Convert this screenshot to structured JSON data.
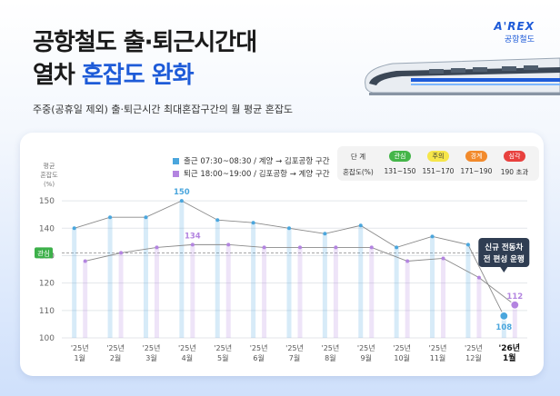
{
  "title_line1": "공항철도 출·퇴근시간대",
  "title_line2_plain": "열차 ",
  "title_line2_highlight": "혼잡도 완화",
  "subtitle": "주중(공휴일 제외) 출·퇴근시간 최대혼잡구간의 월 평균 혼잡도",
  "logo": {
    "en": "A'REX",
    "ko": "공항철도"
  },
  "legend": {
    "morning": "출근 07:30~08:30 / 계양 → 김포공항 구간",
    "evening": "퇴근 18:00~19:00 / 김포공항 → 계양 구간"
  },
  "ktable": {
    "level_header": "단 계",
    "range_header": "혼잡도(%)",
    "levels": [
      {
        "label": "관심",
        "range": "131~150"
      },
      {
        "label": "주의",
        "range": "151~170"
      },
      {
        "label": "경계",
        "range": "171~190"
      },
      {
        "label": "심각",
        "range": "190 초과"
      }
    ]
  },
  "annotation": {
    "line1": "신규 전동차",
    "line2": "전 편성 운행"
  },
  "ref_label": "관심",
  "colors": {
    "morning": "#4aa6dd",
    "evening": "#b384e0",
    "accent": "#1e5bd8",
    "ref": "#3db04a"
  },
  "chart_data": {
    "type": "bar",
    "ylabel": "평균 혼잡도 (%)",
    "ylim": [
      100,
      155
    ],
    "yticks": [
      100,
      110,
      120,
      130,
      140,
      150
    ],
    "categories": [
      [
        "'25년",
        "1월"
      ],
      [
        "'25년",
        "2월"
      ],
      [
        "'25년",
        "3월"
      ],
      [
        "'25년",
        "4월"
      ],
      [
        "'25년",
        "5월"
      ],
      [
        "'25년",
        "6월"
      ],
      [
        "'25년",
        "7월"
      ],
      [
        "'25년",
        "8월"
      ],
      [
        "'25년",
        "9월"
      ],
      [
        "'25년",
        "10월"
      ],
      [
        "'25년",
        "11월"
      ],
      [
        "'25년",
        "12월"
      ],
      [
        "'26년",
        "1월"
      ]
    ],
    "reference_line": 131,
    "labeled_points": [
      {
        "series": 0,
        "index": 3,
        "label": "150"
      },
      {
        "series": 1,
        "index": 3,
        "label": "134"
      },
      {
        "series": 0,
        "index": 12,
        "label": "108"
      },
      {
        "series": 1,
        "index": 12,
        "label": "112"
      }
    ],
    "series": [
      {
        "name": "출근",
        "values": [
          140,
          144,
          144,
          150,
          143,
          142,
          140,
          138,
          141,
          133,
          137,
          134,
          108
        ]
      },
      {
        "name": "퇴근",
        "values": [
          128,
          131,
          133,
          134,
          134,
          133,
          133,
          133,
          133,
          128,
          129,
          122,
          112
        ]
      }
    ]
  }
}
